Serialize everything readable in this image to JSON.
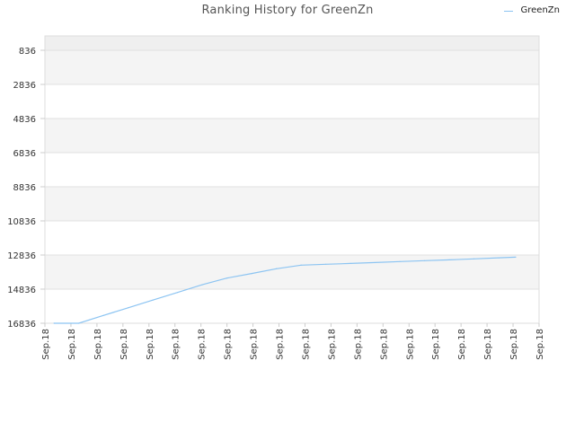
{
  "chart_data": {
    "type": "line",
    "title": "Ranking History for GreenZn",
    "xlabel": "",
    "ylabel": "",
    "y_inverted": true,
    "ylim": [
      836,
      16836
    ],
    "y_ticks": [
      836,
      2836,
      4836,
      6836,
      8836,
      10836,
      12836,
      14836,
      16836
    ],
    "y_tick_labels": [
      "836",
      "2836",
      "4836",
      "6836",
      "8836",
      "10836",
      "12836",
      "14836",
      "16836"
    ],
    "x_tick_labels": [
      "Sep.18",
      "Sep.18",
      "Sep.18",
      "Sep.18",
      "Sep.18",
      "Sep.18",
      "Sep.18",
      "Sep.18",
      "Sep.18",
      "Sep.18",
      "Sep.18",
      "Sep.18",
      "Sep.18",
      "Sep.18",
      "Sep.18",
      "Sep.18",
      "Sep.18",
      "Sep.18",
      "Sep.18",
      "Sep.18"
    ],
    "legend": {
      "placement": "top-right",
      "entries": [
        "GreenZn"
      ]
    },
    "grid": true,
    "series": [
      {
        "name": "GreenZn",
        "color": "#8cc4f2",
        "x": [
          0.35,
          1.3,
          2.25,
          3.2,
          4.15,
          5.1,
          6.05,
          7.0,
          7.95,
          8.9,
          9.85,
          10.8,
          11.75,
          12.7,
          13.65,
          14.6,
          15.55,
          16.5,
          17.45,
          18.1
        ],
        "values": [
          16836,
          16836,
          16380,
          15930,
          15480,
          15030,
          14580,
          14190,
          13920,
          13640,
          13430,
          13380,
          13330,
          13280,
          13220,
          13170,
          13120,
          13060,
          13000,
          12960
        ]
      }
    ]
  }
}
